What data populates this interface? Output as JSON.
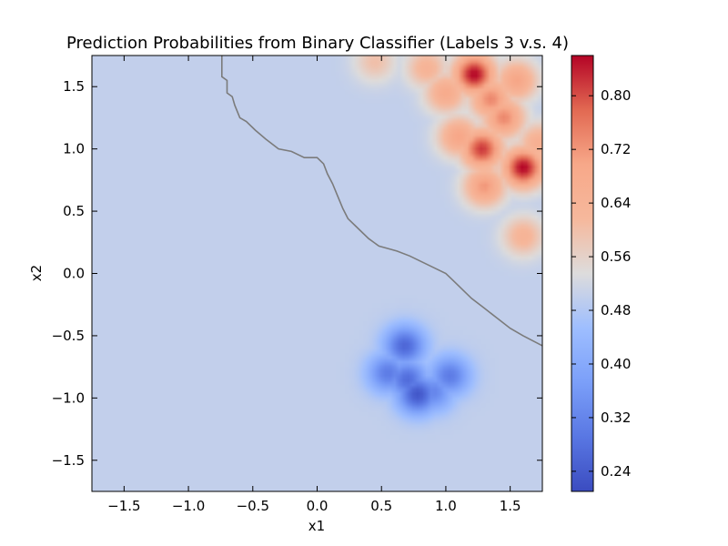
{
  "chart_data": {
    "type": "heatmap",
    "title": "Prediction Probabilities from Binary Classifier (Labels 3 v.s. 4)",
    "xlabel": "x1",
    "ylabel": "x2",
    "xlim": [
      -1.75,
      1.75
    ],
    "ylim": [
      -1.75,
      1.75
    ],
    "x_ticks": [
      -1.5,
      -1.0,
      -0.5,
      0.0,
      0.5,
      1.0,
      1.5
    ],
    "x_tick_labels": [
      "−1.5",
      "−1.0",
      "−0.5",
      "0.0",
      "0.5",
      "1.0",
      "1.5"
    ],
    "y_ticks": [
      -1.5,
      -1.0,
      -0.5,
      0.0,
      0.5,
      1.0,
      1.5
    ],
    "y_tick_labels": [
      "−1.5",
      "−1.0",
      "−0.5",
      "0.0",
      "0.5",
      "1.0",
      "1.5"
    ],
    "colormap": "coolwarm",
    "background_probability": 0.5,
    "colorbar": {
      "vmin": 0.21,
      "vmax": 0.86,
      "ticks": [
        0.24,
        0.32,
        0.4,
        0.48,
        0.56,
        0.64,
        0.72,
        0.8
      ],
      "tick_labels": [
        "0.24",
        "0.32",
        "0.40",
        "0.48",
        "0.56",
        "0.64",
        "0.72",
        "0.80"
      ]
    },
    "high_probability_blobs": [
      {
        "x": 1.22,
        "y": 1.6,
        "peak": 0.86
      },
      {
        "x": 1.35,
        "y": 1.4,
        "peak": 0.74
      },
      {
        "x": 1.0,
        "y": 1.45,
        "peak": 0.68
      },
      {
        "x": 0.85,
        "y": 1.65,
        "peak": 0.64
      },
      {
        "x": 0.45,
        "y": 1.7,
        "peak": 0.6
      },
      {
        "x": 1.55,
        "y": 1.55,
        "peak": 0.7
      },
      {
        "x": 1.28,
        "y": 1.0,
        "peak": 0.82
      },
      {
        "x": 1.6,
        "y": 0.85,
        "peak": 0.86
      },
      {
        "x": 1.45,
        "y": 1.25,
        "peak": 0.74
      },
      {
        "x": 1.1,
        "y": 1.1,
        "peak": 0.7
      },
      {
        "x": 1.3,
        "y": 0.7,
        "peak": 0.72
      },
      {
        "x": 1.6,
        "y": 0.3,
        "peak": 0.64
      },
      {
        "x": 1.72,
        "y": 1.05,
        "peak": 0.66
      }
    ],
    "low_probability_blobs": [
      {
        "x": 0.68,
        "y": -0.58,
        "peak": 0.26
      },
      {
        "x": 0.55,
        "y": -0.8,
        "peak": 0.3
      },
      {
        "x": 0.78,
        "y": -0.97,
        "peak": 0.23
      },
      {
        "x": 0.7,
        "y": -0.85,
        "peak": 0.27
      },
      {
        "x": 1.03,
        "y": -0.82,
        "peak": 0.3
      },
      {
        "x": 0.9,
        "y": -0.95,
        "peak": 0.32
      }
    ],
    "decision_boundary": [
      [
        -0.74,
        1.75
      ],
      [
        -0.74,
        1.58
      ],
      [
        -0.7,
        1.55
      ],
      [
        -0.7,
        1.45
      ],
      [
        -0.66,
        1.42
      ],
      [
        -0.64,
        1.35
      ],
      [
        -0.6,
        1.25
      ],
      [
        -0.55,
        1.22
      ],
      [
        -0.48,
        1.15
      ],
      [
        -0.4,
        1.08
      ],
      [
        -0.3,
        1.0
      ],
      [
        -0.2,
        0.98
      ],
      [
        -0.1,
        0.93
      ],
      [
        0.0,
        0.93
      ],
      [
        0.05,
        0.88
      ],
      [
        0.08,
        0.8
      ],
      [
        0.12,
        0.72
      ],
      [
        0.16,
        0.62
      ],
      [
        0.2,
        0.52
      ],
      [
        0.24,
        0.44
      ],
      [
        0.3,
        0.38
      ],
      [
        0.4,
        0.28
      ],
      [
        0.48,
        0.22
      ],
      [
        0.55,
        0.2
      ],
      [
        0.62,
        0.18
      ],
      [
        0.72,
        0.14
      ],
      [
        0.8,
        0.1
      ],
      [
        0.9,
        0.05
      ],
      [
        1.0,
        0.0
      ],
      [
        1.05,
        -0.05
      ],
      [
        1.12,
        -0.12
      ],
      [
        1.2,
        -0.2
      ],
      [
        1.3,
        -0.28
      ],
      [
        1.4,
        -0.36
      ],
      [
        1.5,
        -0.44
      ],
      [
        1.6,
        -0.5
      ],
      [
        1.75,
        -0.58
      ]
    ]
  }
}
